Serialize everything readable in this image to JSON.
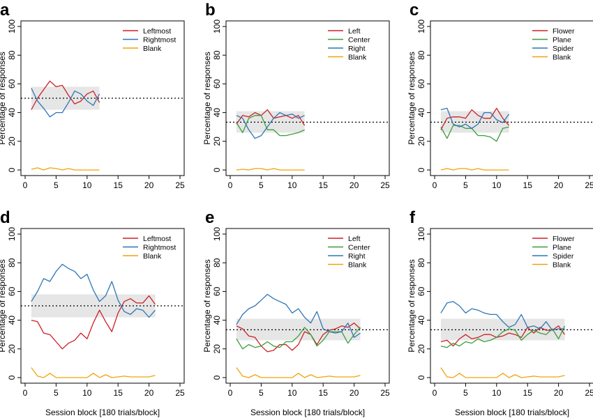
{
  "chart_data": [
    {
      "panel": "a",
      "type": "line",
      "ylabel": "Percentage of responses",
      "xlabel": "",
      "xlim": [
        0,
        25
      ],
      "ylim": [
        0,
        100
      ],
      "xticks": [
        0,
        5,
        10,
        15,
        20,
        25
      ],
      "yticks": [
        0,
        20,
        40,
        60,
        80,
        100
      ],
      "chance": 50,
      "band": [
        42,
        58
      ],
      "legend": {
        "position": "top-right"
      },
      "x": [
        1,
        2,
        3,
        4,
        5,
        6,
        7,
        8,
        9,
        10,
        11,
        12
      ],
      "series": [
        {
          "name": "Leftmost",
          "color": "#cc1f26",
          "values": [
            42,
            50,
            56,
            62,
            58,
            59,
            52,
            46,
            48,
            53,
            55,
            47
          ]
        },
        {
          "name": "Rightmost",
          "color": "#2f75b5",
          "values": [
            57,
            48,
            43,
            37,
            40,
            40,
            47,
            55,
            53,
            48,
            45,
            53
          ]
        },
        {
          "name": "Blank",
          "color": "#f0a30a",
          "values": [
            0.5,
            1.5,
            0,
            1.5,
            1,
            0,
            1,
            0,
            0,
            0,
            0,
            0
          ]
        }
      ]
    },
    {
      "panel": "b",
      "type": "line",
      "ylabel": "Percentage of responses",
      "xlabel": "",
      "xlim": [
        0,
        25
      ],
      "ylim": [
        0,
        100
      ],
      "xticks": [
        0,
        5,
        10,
        15,
        20,
        25
      ],
      "yticks": [
        0,
        20,
        40,
        60,
        80,
        100
      ],
      "chance": 33.3,
      "band": [
        26,
        41
      ],
      "legend": {
        "position": "top-right"
      },
      "x": [
        1,
        2,
        3,
        4,
        5,
        6,
        7,
        8,
        9,
        10,
        11,
        12
      ],
      "series": [
        {
          "name": "Left",
          "color": "#cc1f26",
          "values": [
            32,
            38,
            37,
            40,
            38,
            42,
            36,
            37,
            38,
            36,
            38,
            31
          ]
        },
        {
          "name": "Center",
          "color": "#3a9e3a",
          "values": [
            33,
            26,
            36,
            38,
            38,
            28,
            28,
            24,
            24,
            25,
            26,
            28
          ]
        },
        {
          "name": "Right",
          "color": "#2f75b5",
          "values": [
            38,
            36,
            28,
            22,
            24,
            30,
            36,
            40,
            38,
            39,
            36,
            38
          ]
        },
        {
          "name": "Blank",
          "color": "#f0a30a",
          "values": [
            0,
            0.5,
            0,
            1,
            1,
            0,
            1,
            0,
            0,
            0,
            0,
            0
          ]
        }
      ]
    },
    {
      "panel": "c",
      "type": "line",
      "ylabel": "Percentage of responses",
      "xlabel": "",
      "xlim": [
        0,
        25
      ],
      "ylim": [
        0,
        100
      ],
      "xticks": [
        0,
        5,
        10,
        15,
        20,
        25
      ],
      "yticks": [
        0,
        20,
        40,
        60,
        80,
        100
      ],
      "chance": 33.3,
      "band": [
        26,
        41
      ],
      "legend": {
        "position": "top-right"
      },
      "x": [
        1,
        2,
        3,
        4,
        5,
        6,
        7,
        8,
        9,
        10,
        11,
        12
      ],
      "series": [
        {
          "name": "Flower",
          "color": "#cc1f26",
          "values": [
            28,
            36,
            37,
            37,
            36,
            42,
            38,
            36,
            36,
            43,
            36,
            31
          ]
        },
        {
          "name": "Plane",
          "color": "#3a9e3a",
          "values": [
            30,
            22,
            31,
            31,
            29,
            29,
            24,
            24,
            23,
            20,
            29,
            30
          ]
        },
        {
          "name": "Spider",
          "color": "#2f75b5",
          "values": [
            42,
            43,
            32,
            30,
            32,
            29,
            32,
            40,
            40,
            35,
            33,
            39
          ]
        },
        {
          "name": "Blank",
          "color": "#f0a30a",
          "values": [
            0,
            1,
            0,
            1,
            1,
            0,
            1,
            0,
            0,
            0,
            0,
            0
          ]
        }
      ]
    },
    {
      "panel": "d",
      "type": "line",
      "ylabel": "Percentage of responses",
      "xlabel": "Session block [180 trials/block]",
      "xlim": [
        0,
        25
      ],
      "ylim": [
        0,
        100
      ],
      "xticks": [
        0,
        5,
        10,
        15,
        20,
        25
      ],
      "yticks": [
        0,
        20,
        40,
        60,
        80,
        100
      ],
      "chance": 50,
      "band": [
        42,
        58
      ],
      "legend": {
        "position": "top-right"
      },
      "x": [
        1,
        2,
        3,
        4,
        5,
        6,
        7,
        8,
        9,
        10,
        11,
        12,
        13,
        14,
        15,
        16,
        17,
        18,
        19,
        20,
        21
      ],
      "series": [
        {
          "name": "Leftmost",
          "color": "#cc1f26",
          "values": [
            40,
            39,
            31,
            30,
            25,
            20,
            24,
            26,
            31,
            27,
            38,
            47,
            39,
            32,
            45,
            53,
            55,
            52,
            52,
            57,
            51
          ]
        },
        {
          "name": "Rightmost",
          "color": "#2f75b5",
          "values": [
            53,
            60,
            69,
            67,
            74,
            79,
            76,
            74,
            69,
            72,
            61,
            53,
            57,
            67,
            54,
            46,
            44,
            48,
            47,
            42,
            47
          ]
        },
        {
          "name": "Blank",
          "color": "#f0a30a",
          "values": [
            7,
            1,
            0,
            3,
            0,
            0,
            0,
            0,
            0,
            0,
            3,
            0,
            2,
            0,
            0.5,
            1,
            0.5,
            0.5,
            0.5,
            0.5,
            1.5
          ]
        }
      ]
    },
    {
      "panel": "e",
      "type": "line",
      "ylabel": "Percentage of responses",
      "xlabel": "Session block [180 trials/block]",
      "xlim": [
        0,
        25
      ],
      "ylim": [
        0,
        100
      ],
      "xticks": [
        0,
        5,
        10,
        15,
        20,
        25
      ],
      "yticks": [
        0,
        20,
        40,
        60,
        80,
        100
      ],
      "chance": 33.3,
      "band": [
        26,
        41
      ],
      "legend": {
        "position": "top-right"
      },
      "x": [
        1,
        2,
        3,
        4,
        5,
        6,
        7,
        8,
        9,
        10,
        11,
        12,
        13,
        14,
        15,
        16,
        17,
        18,
        19,
        20,
        21
      ],
      "series": [
        {
          "name": "Left",
          "color": "#cc1f26",
          "values": [
            36,
            34,
            29,
            28,
            22,
            18,
            19,
            23,
            23,
            19,
            23,
            32,
            30,
            23,
            30,
            33,
            34,
            36,
            35,
            38,
            34
          ]
        },
        {
          "name": "Center",
          "color": "#3a9e3a",
          "values": [
            27,
            20,
            23,
            21,
            22,
            25,
            22,
            21,
            25,
            25,
            29,
            35,
            30,
            22,
            26,
            32,
            32,
            32,
            24,
            30,
            35
          ]
        },
        {
          "name": "Right",
          "color": "#2f75b5",
          "values": [
            37,
            44,
            48,
            50,
            54,
            58,
            55,
            53,
            51,
            45,
            48,
            42,
            38,
            46,
            34,
            32,
            31,
            32,
            38,
            28,
            31
          ]
        },
        {
          "name": "Blank",
          "color": "#f0a30a",
          "values": [
            7,
            1,
            0,
            2,
            0,
            0,
            0,
            0,
            0,
            0,
            3,
            0,
            2,
            0,
            0.5,
            1,
            0.5,
            0.5,
            0.5,
            0.5,
            1.5
          ]
        }
      ]
    },
    {
      "panel": "f",
      "type": "line",
      "ylabel": "Percentage of responses",
      "xlabel": "Session block [180 trials/block]",
      "xlim": [
        0,
        25
      ],
      "ylim": [
        0,
        100
      ],
      "xticks": [
        0,
        5,
        10,
        15,
        20,
        25
      ],
      "yticks": [
        0,
        20,
        40,
        60,
        80,
        100
      ],
      "chance": 33.3,
      "band": [
        26,
        41
      ],
      "legend": {
        "position": "top-right"
      },
      "x": [
        1,
        2,
        3,
        4,
        5,
        6,
        7,
        8,
        9,
        10,
        11,
        12,
        13,
        14,
        15,
        16,
        17,
        18,
        19,
        20,
        21
      ],
      "series": [
        {
          "name": "Flower",
          "color": "#cc1f26",
          "values": [
            25,
            26,
            22,
            27,
            30,
            27,
            28,
            30,
            30,
            28,
            29,
            31,
            30,
            28,
            35,
            31,
            35,
            33,
            33,
            36,
            30
          ]
        },
        {
          "name": "Plane",
          "color": "#3a9e3a",
          "values": [
            22,
            21,
            24,
            22,
            25,
            24,
            27,
            25,
            26,
            28,
            32,
            34,
            33,
            26,
            30,
            33,
            31,
            30,
            34,
            27,
            36
          ]
        },
        {
          "name": "Spider",
          "color": "#2f75b5",
          "values": [
            45,
            52,
            53,
            50,
            45,
            48,
            47,
            45,
            44,
            44,
            39,
            35,
            37,
            44,
            35,
            36,
            34,
            39,
            33,
            34,
            34
          ]
        },
        {
          "name": "Blank",
          "color": "#f0a30a",
          "values": [
            7,
            0.5,
            0,
            3,
            0,
            0,
            0,
            0,
            0,
            0,
            3,
            0,
            2,
            0,
            0.5,
            1,
            0.5,
            0.5,
            0.5,
            0.5,
            1.5
          ]
        }
      ]
    }
  ]
}
